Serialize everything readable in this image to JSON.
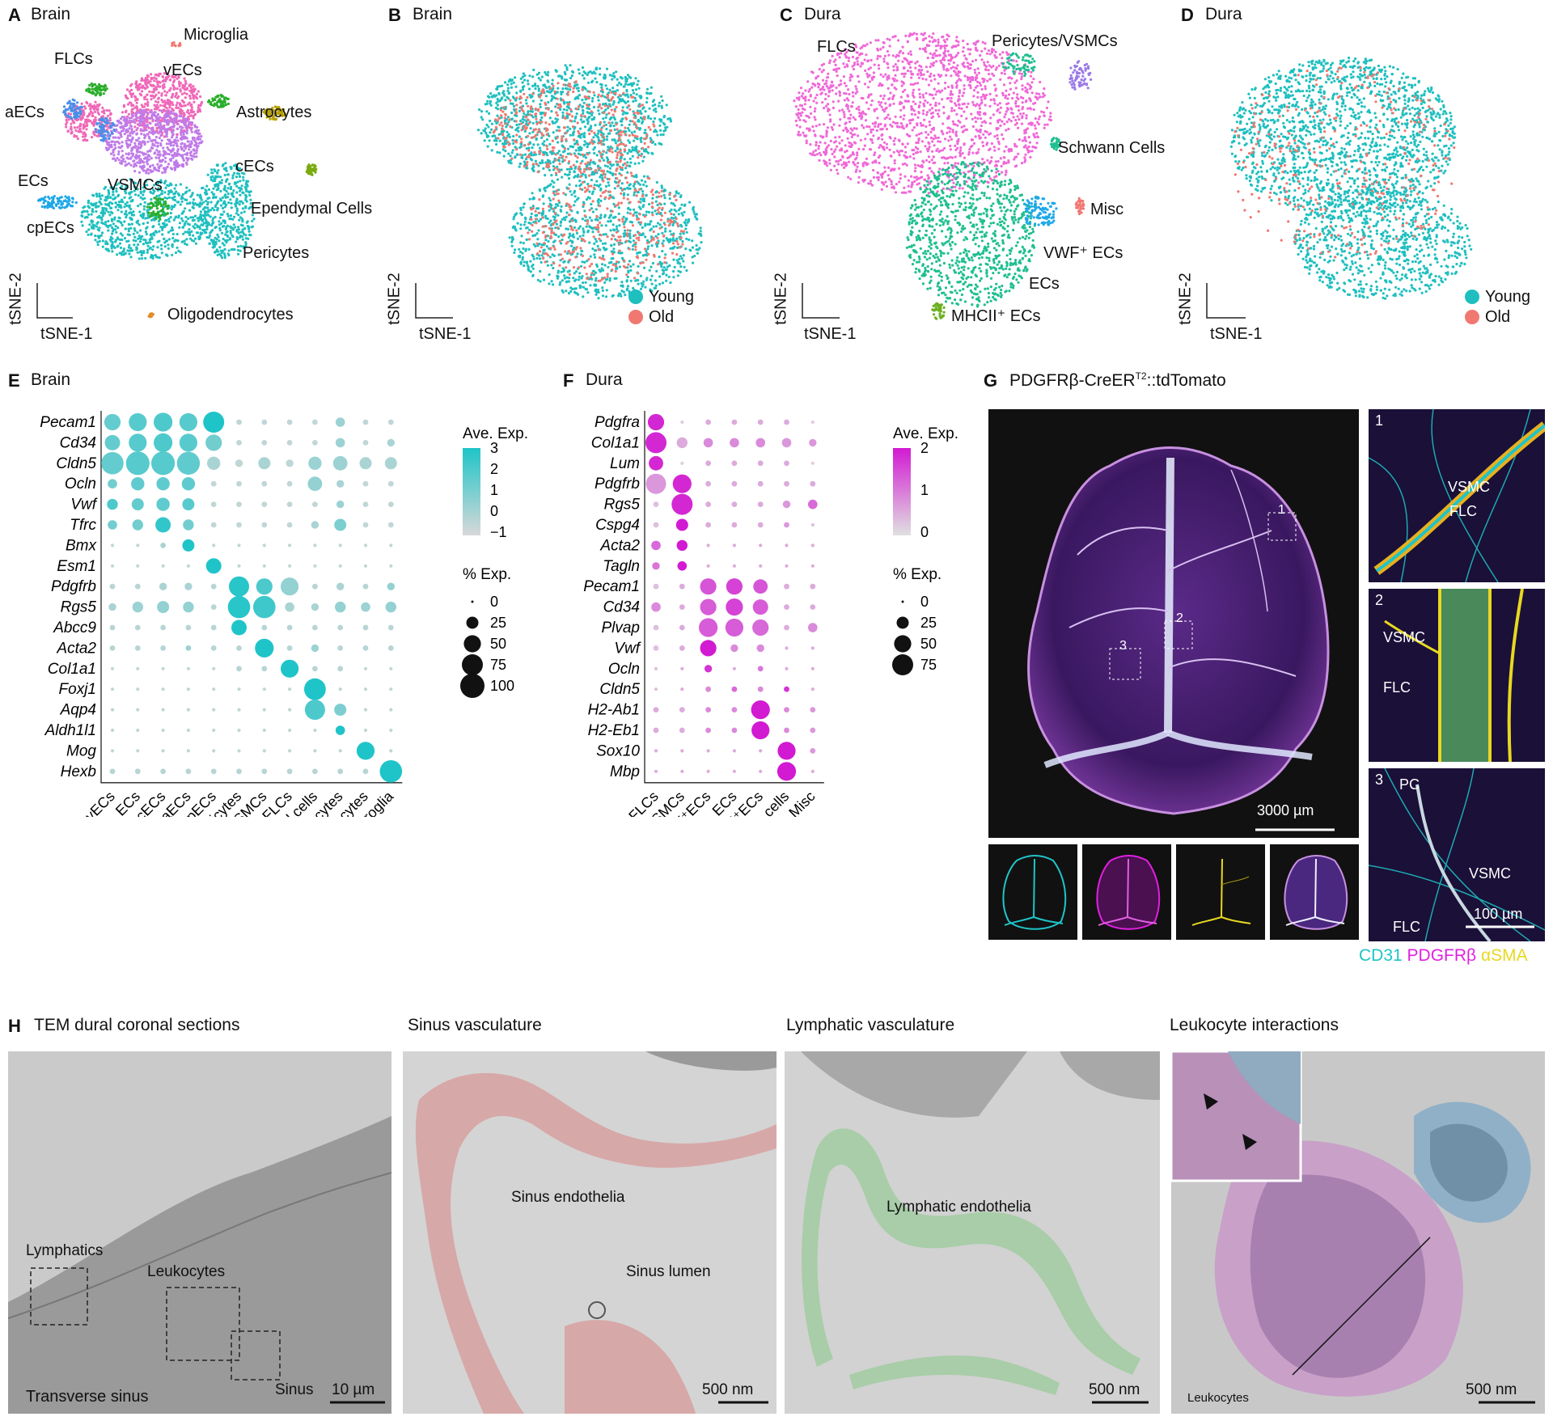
{
  "panels": {
    "A": {
      "letter": "A",
      "title": "Brain"
    },
    "B": {
      "letter": "B",
      "title": "Brain"
    },
    "C": {
      "letter": "C",
      "title": "Dura"
    },
    "D": {
      "letter": "D",
      "title": "Dura"
    },
    "E": {
      "letter": "E",
      "title": "Brain"
    },
    "F": {
      "letter": "F",
      "title": "Dura"
    },
    "G": {
      "letter": "G",
      "title": "PDGFRβ-CreER",
      "title_sup": "T2",
      "title_suffix": "::tdTomato"
    },
    "H": {
      "letter": "H",
      "title": "TEM dural coronal sections"
    }
  },
  "tsne": {
    "xlabel": "tSNE-1",
    "ylabel": "tSNE-2",
    "A_labels": [
      "Microglia",
      "FLCs",
      "vECs",
      "aECs",
      "Astrocytes",
      "cECs",
      "ECs",
      "VSMCs",
      "Ependymal Cells",
      "cpECs",
      "Pericytes",
      "Oligodendrocytes"
    ],
    "C_labels": [
      "FLCs",
      "Pericytes/VSMCs",
      "Schwann Cells",
      "Misc",
      "VWF⁺ ECs",
      "ECs",
      "MHCII⁺ ECs"
    ],
    "legend": [
      {
        "name": "Young",
        "color": "#1fbfbf"
      },
      {
        "name": "Old",
        "color": "#f07870"
      }
    ]
  },
  "chart_data": [
    {
      "type": "dotplot",
      "panel": "E",
      "genes": [
        "Pecam1",
        "Cd34",
        "Cldn5",
        "Ocln",
        "Vwf",
        "Tfrc",
        "Bmx",
        "Esm1",
        "Pdgfrb",
        "Rgs5",
        "Abcc9",
        "Acta2",
        "Col1a1",
        "Foxj1",
        "Aqp4",
        "Aldh1l1",
        "Mog",
        "Hexb"
      ],
      "categories": [
        "vECs",
        "ECs",
        "cECs",
        "aECs",
        "cpECs",
        "Pericytes",
        "VSMCs",
        "FLCs",
        "Ependymal cells",
        "Astrocytes",
        "Oligodendrocytes",
        "Microglia"
      ],
      "color_legend_title": "Ave. Exp.",
      "color_ticks": [
        "3",
        "2",
        "1",
        "0",
        "−1"
      ],
      "size_legend_title": "% Exp.",
      "size_ticks": [
        "0",
        "25",
        "50",
        "75",
        "100"
      ],
      "color_low": "#d8d8d8",
      "color_high": "#1fc4c8",
      "pct": [
        [
          45,
          55,
          60,
          55,
          75,
          5,
          5,
          5,
          5,
          15,
          5,
          5
        ],
        [
          40,
          55,
          60,
          55,
          45,
          5,
          5,
          5,
          5,
          15,
          5,
          10
        ],
        [
          85,
          95,
          95,
          90,
          30,
          10,
          25,
          10,
          30,
          35,
          25,
          25
        ],
        [
          15,
          30,
          30,
          30,
          5,
          5,
          5,
          5,
          35,
          10,
          5,
          5
        ],
        [
          20,
          25,
          30,
          25,
          5,
          5,
          5,
          5,
          5,
          10,
          5,
          5
        ],
        [
          15,
          20,
          40,
          20,
          5,
          5,
          5,
          5,
          10,
          25,
          5,
          5
        ],
        [
          2,
          2,
          5,
          25,
          2,
          2,
          2,
          2,
          2,
          2,
          2,
          2
        ],
        [
          2,
          2,
          2,
          2,
          40,
          2,
          2,
          2,
          2,
          2,
          2,
          2
        ],
        [
          5,
          5,
          10,
          10,
          5,
          70,
          45,
          55,
          5,
          10,
          5,
          10
        ],
        [
          10,
          20,
          25,
          20,
          5,
          85,
          85,
          15,
          10,
          20,
          15,
          20
        ],
        [
          5,
          5,
          5,
          5,
          5,
          40,
          5,
          5,
          5,
          5,
          5,
          5
        ],
        [
          5,
          5,
          5,
          5,
          5,
          5,
          60,
          5,
          10,
          5,
          5,
          5
        ],
        [
          2,
          2,
          2,
          2,
          2,
          5,
          5,
          55,
          5,
          5,
          2,
          2
        ],
        [
          2,
          2,
          2,
          2,
          2,
          2,
          2,
          2,
          80,
          2,
          2,
          2
        ],
        [
          2,
          2,
          2,
          2,
          2,
          2,
          2,
          2,
          70,
          25,
          2,
          2
        ],
        [
          2,
          2,
          2,
          2,
          2,
          2,
          2,
          2,
          2,
          15,
          2,
          2
        ],
        [
          2,
          2,
          2,
          2,
          2,
          2,
          2,
          2,
          2,
          2,
          55,
          2
        ],
        [
          5,
          5,
          5,
          5,
          5,
          5,
          5,
          5,
          5,
          5,
          5,
          85
        ]
      ],
      "exp": [
        [
          1.5,
          1.8,
          2.0,
          1.8,
          3.0,
          -0.5,
          -0.5,
          -0.5,
          -0.5,
          0.3,
          -0.5,
          -0.5
        ],
        [
          1.5,
          1.8,
          2.0,
          1.8,
          1.2,
          -0.5,
          -0.5,
          -0.5,
          -0.5,
          0.3,
          -0.5,
          0.0
        ],
        [
          1.5,
          1.8,
          1.8,
          1.6,
          0.0,
          -0.5,
          0.0,
          -0.5,
          0.3,
          0.3,
          0.0,
          0.0
        ],
        [
          1.2,
          1.6,
          1.6,
          1.6,
          -0.5,
          -0.5,
          -0.5,
          -0.5,
          0.5,
          0.0,
          -0.5,
          -0.5
        ],
        [
          2.0,
          1.5,
          1.6,
          1.8,
          -0.5,
          -0.5,
          -0.5,
          -0.5,
          -0.5,
          0.3,
          -0.5,
          -0.5
        ],
        [
          1.2,
          1.2,
          2.6,
          1.2,
          -0.5,
          -0.5,
          -0.5,
          -0.5,
          0.0,
          1.0,
          -0.5,
          -0.5
        ],
        [
          -0.5,
          -0.5,
          0.0,
          3.0,
          -0.5,
          -0.5,
          -0.5,
          -0.5,
          -0.5,
          -0.5,
          -0.5,
          -0.5
        ],
        [
          -0.5,
          -0.5,
          -0.5,
          -0.5,
          3.0,
          -0.5,
          -0.5,
          -0.5,
          -0.5,
          -0.5,
          -0.5,
          -0.5
        ],
        [
          -0.3,
          -0.3,
          0.0,
          0.0,
          -0.3,
          2.8,
          2.0,
          0.5,
          -0.3,
          0.0,
          -0.3,
          0.5
        ],
        [
          0.0,
          0.3,
          0.5,
          0.5,
          -0.3,
          2.8,
          2.3,
          0.0,
          0.0,
          0.5,
          0.3,
          0.5
        ],
        [
          -0.3,
          -0.3,
          -0.3,
          -0.3,
          -0.3,
          3.0,
          -0.3,
          -0.3,
          -0.3,
          -0.3,
          -0.3,
          -0.3
        ],
        [
          -0.3,
          -0.3,
          -0.3,
          0.3,
          -0.3,
          -0.3,
          3.0,
          -0.3,
          0.3,
          -0.3,
          -0.3,
          -0.3
        ],
        [
          -0.5,
          -0.5,
          -0.5,
          -0.5,
          -0.5,
          -0.3,
          -0.3,
          3.0,
          -0.3,
          -0.3,
          -0.5,
          -0.5
        ],
        [
          -0.5,
          -0.5,
          -0.5,
          -0.5,
          -0.5,
          -0.5,
          -0.5,
          -0.5,
          3.0,
          -0.5,
          -0.5,
          -0.5
        ],
        [
          -0.5,
          -0.5,
          -0.5,
          -0.5,
          -0.5,
          -0.5,
          -0.5,
          -0.5,
          2.0,
          1.0,
          -0.5,
          -0.5
        ],
        [
          -0.5,
          -0.5,
          -0.5,
          -0.5,
          -0.5,
          -0.5,
          -0.5,
          -0.5,
          -0.5,
          3.0,
          -0.5,
          -0.5
        ],
        [
          -0.5,
          -0.5,
          -0.5,
          -0.5,
          -0.5,
          -0.5,
          -0.5,
          -0.5,
          -0.5,
          -0.5,
          3.0,
          -0.5
        ],
        [
          -0.3,
          -0.3,
          -0.3,
          -0.3,
          -0.3,
          -0.3,
          -0.3,
          -0.3,
          -0.3,
          -0.3,
          -0.3,
          3.0
        ]
      ]
    },
    {
      "type": "dotplot",
      "panel": "F",
      "genes": [
        "Pdgfra",
        "Col1a1",
        "Lum",
        "Pdgfrb",
        "Rgs5",
        "Cspg4",
        "Acta2",
        "Tagln",
        "Pecam1",
        "Cd34",
        "Plvap",
        "Vwf",
        "Ocln",
        "Cldn5",
        "H2-Ab1",
        "H2-Eb1",
        "Sox10",
        "Mbp"
      ],
      "categories": [
        "FLCs",
        "Pericytes/VSMCs",
        "VWF⁺ECs",
        "ECs",
        "MHCII⁺ECs",
        "Schwann cells",
        "Misc"
      ],
      "color_legend_title": "Ave. Exp.",
      "color_ticks": [
        "2",
        "1",
        "0"
      ],
      "size_legend_title": "% Exp.",
      "size_ticks": [
        "0",
        "25",
        "50",
        "75"
      ],
      "color_low": "#e0e0e0",
      "color_high": "#d21ad2",
      "pct": [
        [
          45,
          2,
          5,
          5,
          5,
          5,
          2
        ],
        [
          75,
          20,
          15,
          15,
          15,
          15,
          10
        ],
        [
          35,
          2,
          5,
          5,
          5,
          5,
          2
        ],
        [
          70,
          60,
          5,
          5,
          5,
          5,
          5
        ],
        [
          5,
          75,
          5,
          5,
          5,
          10,
          15
        ],
        [
          5,
          25,
          5,
          5,
          5,
          5,
          2
        ],
        [
          15,
          20,
          2,
          2,
          2,
          2,
          2
        ],
        [
          10,
          15,
          2,
          2,
          2,
          2,
          2
        ],
        [
          5,
          5,
          45,
          45,
          35,
          5,
          5
        ],
        [
          15,
          5,
          45,
          50,
          40,
          5,
          5
        ],
        [
          5,
          5,
          60,
          55,
          45,
          5,
          15
        ],
        [
          5,
          5,
          45,
          10,
          10,
          2,
          2
        ],
        [
          2,
          2,
          10,
          2,
          5,
          2,
          2
        ],
        [
          2,
          2,
          5,
          5,
          5,
          5,
          2
        ],
        [
          5,
          5,
          5,
          5,
          60,
          5,
          5
        ],
        [
          5,
          5,
          5,
          5,
          55,
          5,
          5
        ],
        [
          2,
          2,
          2,
          2,
          2,
          55,
          5
        ],
        [
          2,
          2,
          2,
          2,
          2,
          60,
          2
        ]
      ],
      "exp": [
        [
          2.0,
          -0.5,
          0.0,
          0.0,
          0.0,
          0.0,
          -0.5
        ],
        [
          2.0,
          0.0,
          0.5,
          0.5,
          0.5,
          0.3,
          0.3
        ],
        [
          2.0,
          -0.5,
          0.0,
          0.0,
          0.0,
          0.0,
          -0.5
        ],
        [
          0.3,
          2.0,
          0.0,
          0.0,
          0.0,
          0.0,
          0.0
        ],
        [
          -0.3,
          2.0,
          0.0,
          0.0,
          0.0,
          0.3,
          1.0
        ],
        [
          -0.3,
          2.2,
          0.0,
          0.0,
          0.0,
          0.3,
          -0.3
        ],
        [
          1.0,
          2.2,
          0.0,
          0.0,
          0.0,
          0.0,
          0.0
        ],
        [
          0.8,
          2.2,
          0.0,
          0.0,
          0.0,
          0.0,
          0.0
        ],
        [
          -0.3,
          0.0,
          1.3,
          1.6,
          1.3,
          0.0,
          0.0
        ],
        [
          0.5,
          0.0,
          1.2,
          1.6,
          1.2,
          0.0,
          0.0
        ],
        [
          -0.3,
          0.0,
          1.2,
          1.2,
          1.0,
          0.0,
          0.5
        ],
        [
          -0.3,
          0.0,
          2.2,
          0.5,
          0.5,
          0.0,
          0.0
        ],
        [
          -0.3,
          0.0,
          1.8,
          0.0,
          0.8,
          0.0,
          0.0
        ],
        [
          -0.3,
          0.0,
          0.5,
          1.0,
          0.5,
          1.8,
          0.0
        ],
        [
          0.0,
          0.0,
          0.5,
          0.5,
          2.2,
          0.5,
          0.3
        ],
        [
          0.0,
          0.0,
          0.5,
          0.5,
          2.2,
          0.5,
          0.3
        ],
        [
          0.0,
          0.0,
          0.0,
          0.0,
          0.0,
          2.2,
          0.3
        ],
        [
          0.0,
          0.0,
          0.0,
          0.0,
          0.0,
          2.2,
          0.0
        ]
      ]
    }
  ],
  "panelG": {
    "scale_main": "3000 µm",
    "scale_inset": "100 µm",
    "box_labels": [
      "1",
      "2",
      "3"
    ],
    "inset1": {
      "num": "1",
      "labels": [
        "VSMC",
        "FLC"
      ]
    },
    "inset2": {
      "num": "2",
      "labels": [
        "VSMC",
        "FLC"
      ]
    },
    "inset3": {
      "num": "3",
      "labels": [
        "PC",
        "VSMC",
        "FLC"
      ]
    },
    "channels": [
      {
        "name": "CD31",
        "color": "#1fc4c8"
      },
      {
        "name": "PDGFRβ",
        "color": "#e020e0"
      },
      {
        "name": "αSMA",
        "color": "#e8d820"
      }
    ]
  },
  "panelH": {
    "img1": {
      "labels": [
        "Lymphatics",
        "Leukocytes",
        "Transverse sinus",
        "Sinus"
      ],
      "scale": "10 µm"
    },
    "img2": {
      "title": "Sinus vasculature",
      "labels": [
        "Sinus endothelia",
        "Sinus lumen"
      ],
      "scale": "500 nm"
    },
    "img3": {
      "title": "Lymphatic vasculature",
      "labels": [
        "Lymphatic endothelia"
      ],
      "scale": "500 nm"
    },
    "img4": {
      "title": "Leukocyte interactions",
      "labels": [
        "Leukocytes"
      ],
      "scale": "500 nm"
    }
  }
}
